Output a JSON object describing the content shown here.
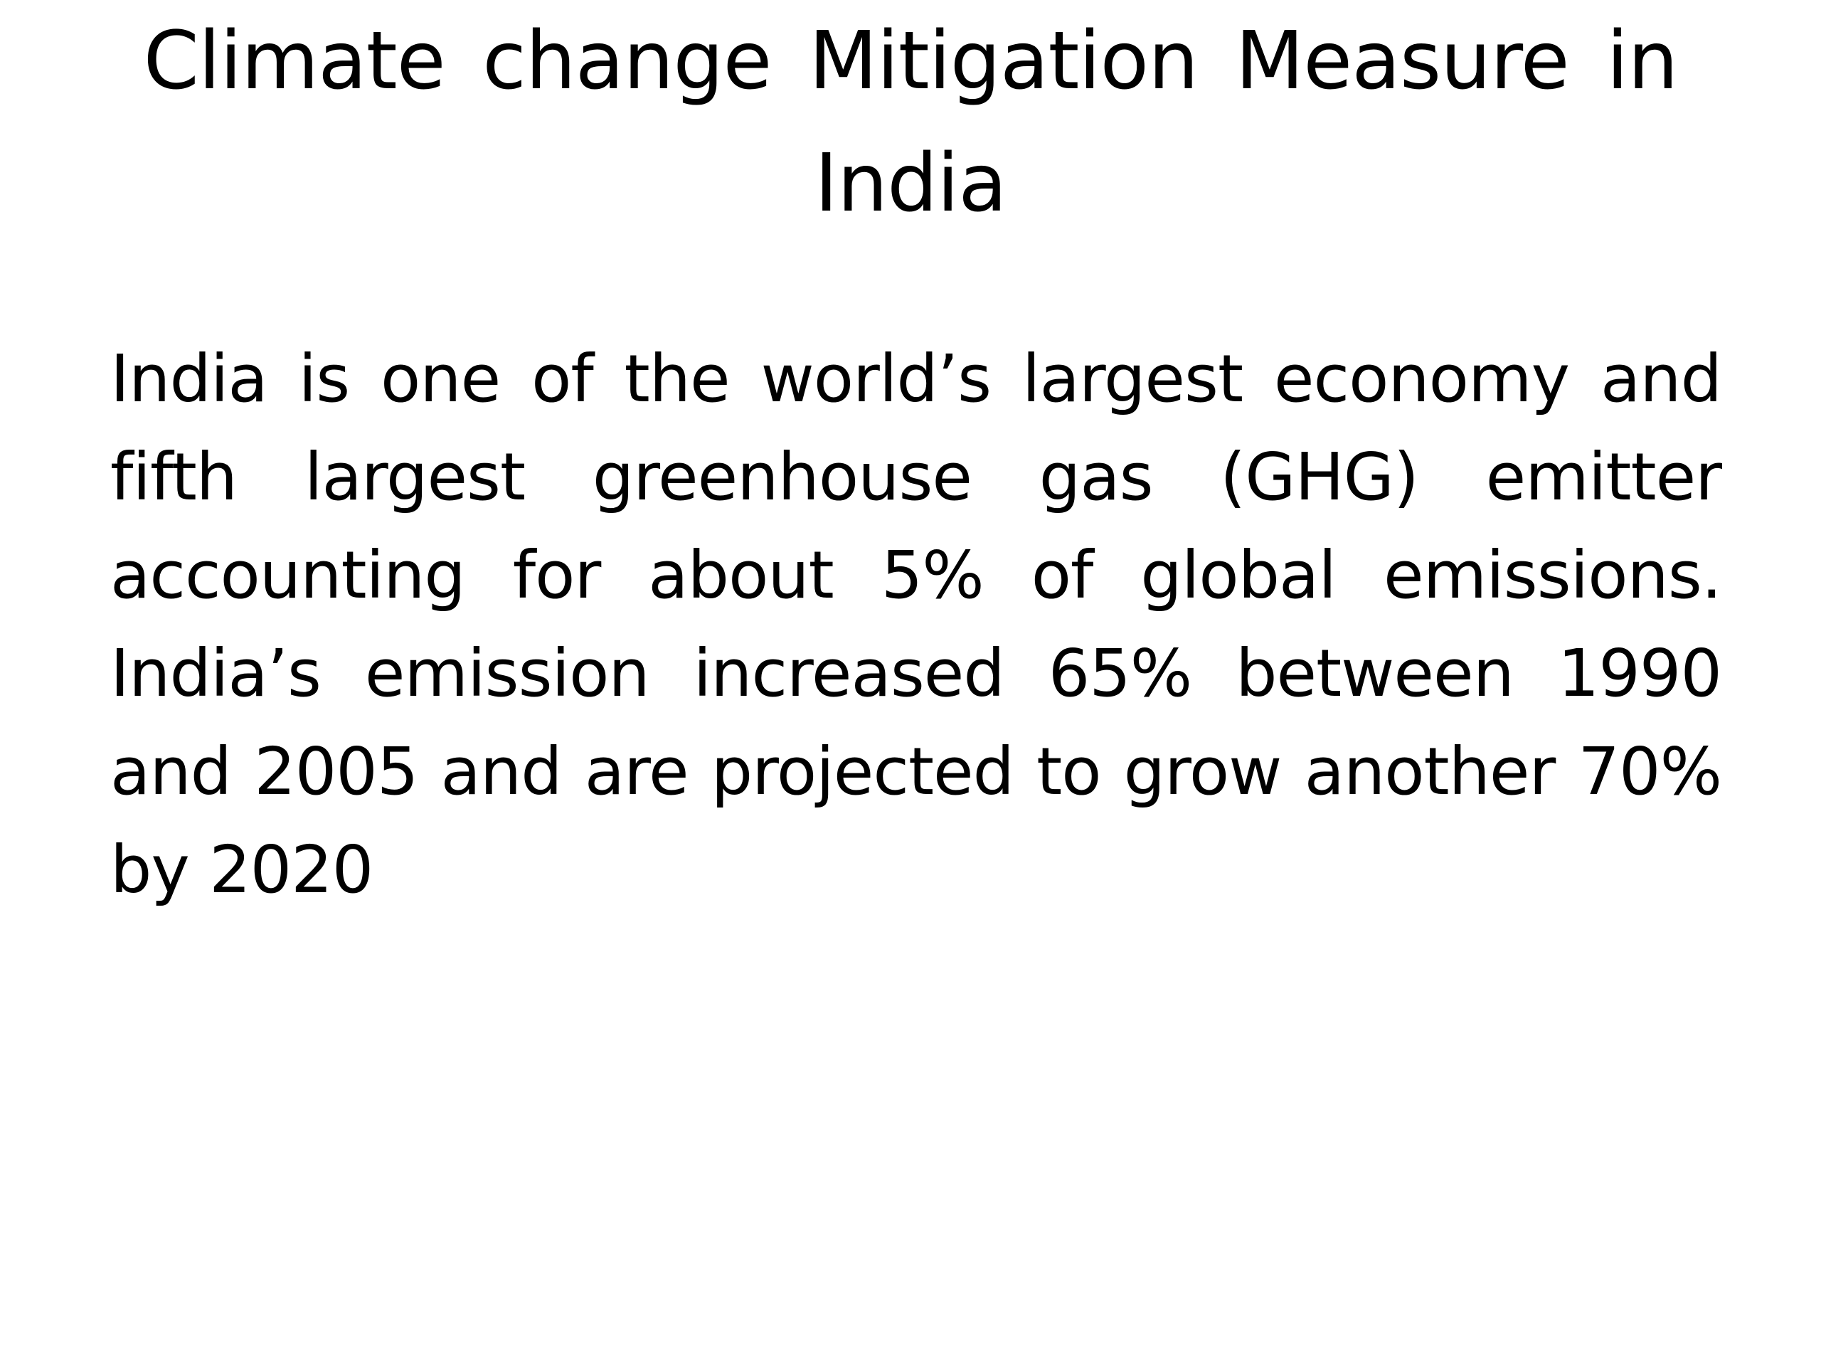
{
  "slide": {
    "title": "Climate  change  Mitigation  Measure  in  India",
    "body": "India  is one  of  the  world’s  largest  economy and  fifth  largest  greenhouse  gas  (GHG) emitter accounting  for  about  5% of  global emissions. India’s  emission  increased  65% between  1990  and 2005 and are  projected  to grow  another 70%  by  2020"
  }
}
